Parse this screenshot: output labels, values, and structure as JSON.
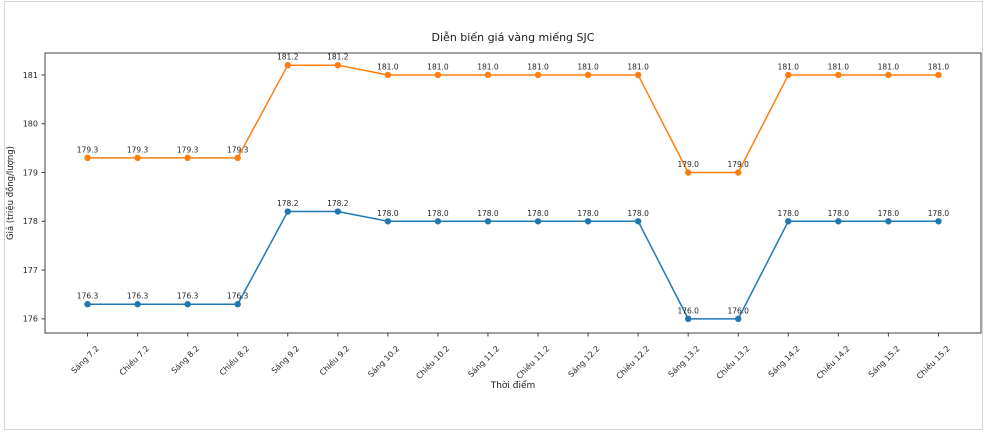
{
  "figure": {
    "title": "Diễn biến giá vàng miếng SJC",
    "xlabel": "Thời điểm",
    "ylabel": "Giá (triệu đồng/lượng)"
  },
  "chart_data": {
    "type": "line",
    "title": "Diễn biến giá vàng miếng SJC",
    "xlabel": "Thời điểm",
    "ylabel": "Giá (triệu đồng/lượng)",
    "categories": [
      "Sáng 7.2",
      "Chiều 7.2",
      "Sáng 8.2",
      "Chiều 8.2",
      "Sáng 9.2",
      "Chiều 9.2",
      "Sáng 10.2",
      "Chiều 10.2",
      "Sáng 11.2",
      "Chiều 11.2",
      "Sáng 12.2",
      "Chiều 12.2",
      "Sáng 13.2",
      "Chiều 13.2",
      "Sáng 14.2",
      "Chiều 14.2",
      "Sáng 15.2",
      "Chiều 15.2"
    ],
    "series": [
      {
        "name": "orange-line",
        "color": "#ff7f0e",
        "values": [
          179.3,
          179.3,
          179.3,
          179.3,
          181.2,
          181.2,
          181.0,
          181.0,
          181.0,
          181.0,
          181.0,
          181.0,
          179.0,
          179.0,
          181.0,
          181.0,
          181.0,
          181.0
        ]
      },
      {
        "name": "blue-line",
        "color": "#1f77b4",
        "values": [
          176.3,
          176.3,
          176.3,
          176.3,
          178.2,
          178.2,
          178.0,
          178.0,
          178.0,
          178.0,
          178.0,
          178.0,
          176.0,
          176.0,
          178.0,
          178.0,
          178.0,
          178.0
        ]
      }
    ],
    "yticks": [
      176,
      177,
      178,
      179,
      180,
      181
    ],
    "ylim": [
      175.71,
      181.45
    ],
    "xlim": [
      -0.85,
      17.85
    ],
    "grid": false,
    "legend": false,
    "point_labels": true
  }
}
